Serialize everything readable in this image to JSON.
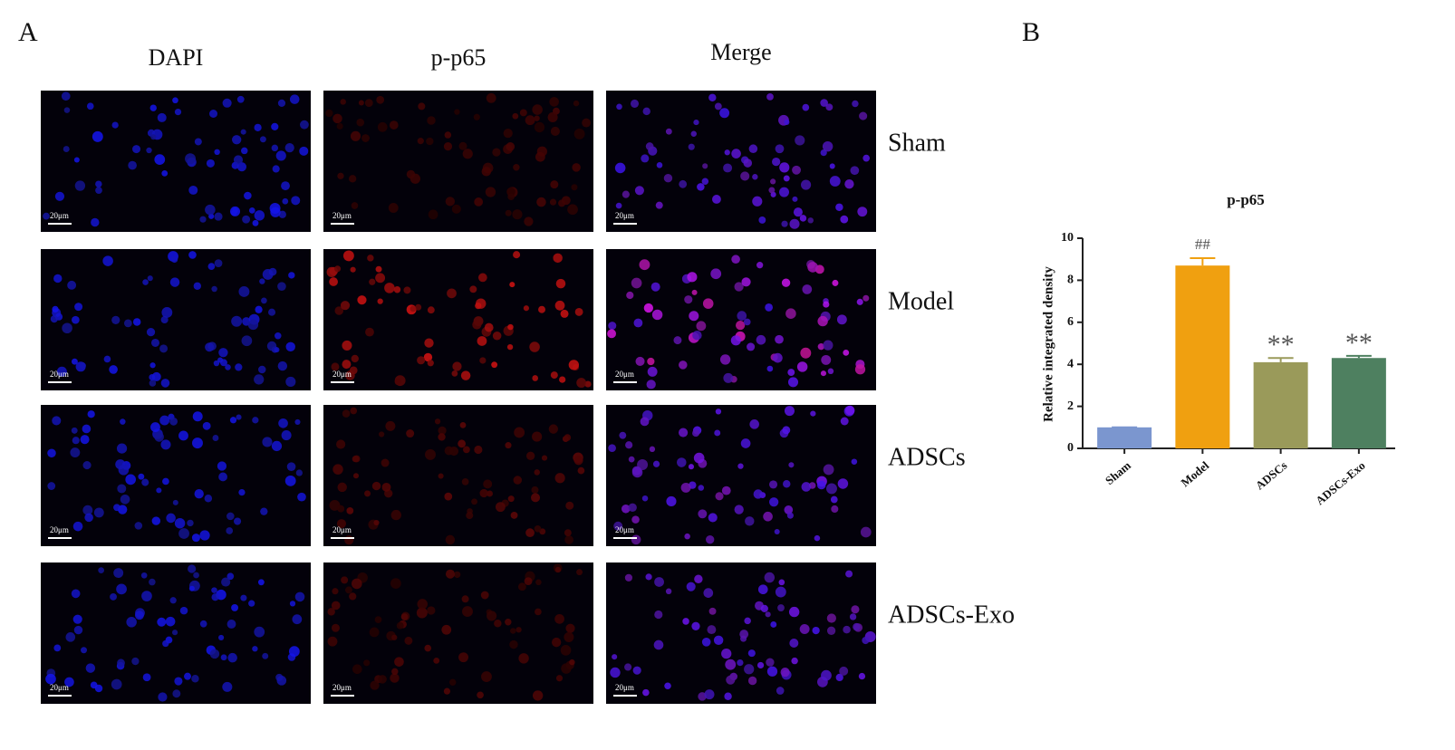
{
  "panel_a": {
    "label": "A",
    "columns": [
      "DAPI",
      "p-p65",
      "Merge"
    ],
    "rows": [
      "Sham",
      "Model",
      "ADSCs",
      "ADSCs-Exo"
    ],
    "scale_bar": "20μm"
  },
  "panel_b": {
    "label": "B"
  },
  "chart_data": {
    "type": "bar",
    "title": "p-p65",
    "ylabel": "Relative integrated density",
    "categories": [
      "Sham",
      "Model",
      "ADSCs",
      "ADSCs-Exo"
    ],
    "values": [
      1.0,
      8.7,
      4.1,
      4.3
    ],
    "errors": [
      0,
      0.35,
      0.2,
      0.1
    ],
    "colors": [
      "#7b96cf",
      "#f0a010",
      "#9a9a5a",
      "#4e8060"
    ],
    "annotations": [
      {
        "category": "Model",
        "text": "##"
      },
      {
        "category": "ADSCs",
        "text": "**"
      },
      {
        "category": "ADSCs-Exo",
        "text": "**"
      }
    ],
    "ylim": [
      0,
      10
    ],
    "yticks": [
      0,
      2,
      4,
      6,
      8,
      10
    ]
  }
}
